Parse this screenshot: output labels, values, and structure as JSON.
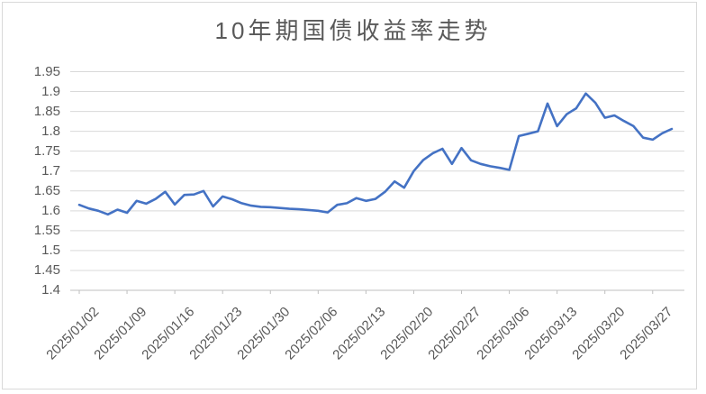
{
  "chart_data": {
    "type": "line",
    "title": "10年期国债收益率走势",
    "legend": "none",
    "grid": true,
    "ylim": [
      1.4,
      1.95
    ],
    "y_step": 0.05,
    "y_tick_labels": [
      "1.95",
      "1.9",
      "1.85",
      "1.8",
      "1.75",
      "1.7",
      "1.65",
      "1.6",
      "1.55",
      "1.5",
      "1.45",
      "1.4"
    ],
    "x_tick_labels": [
      "2025/01/02",
      "2025/01/09",
      "2025/01/16",
      "2025/01/23",
      "2025/01/30",
      "2025/02/06",
      "2025/02/13",
      "2025/02/20",
      "2025/02/27",
      "2025/03/06",
      "2025/03/13",
      "2025/03/20",
      "2025/03/27"
    ],
    "tick_interval": 5,
    "x": [
      "2025/01/02",
      "2025/01/03",
      "2025/01/06",
      "2025/01/07",
      "2025/01/08",
      "2025/01/09",
      "2025/01/10",
      "2025/01/13",
      "2025/01/14",
      "2025/01/15",
      "2025/01/16",
      "2025/01/17",
      "2025/01/20",
      "2025/01/21",
      "2025/01/22",
      "2025/01/23",
      "2025/01/24",
      "2025/01/27",
      "2025/01/28",
      "2025/01/29",
      "2025/01/30",
      "2025/01/31",
      "2025/02/03",
      "2025/02/04",
      "2025/02/05",
      "2025/02/06",
      "2025/02/07",
      "2025/02/10",
      "2025/02/11",
      "2025/02/12",
      "2025/02/13",
      "2025/02/14",
      "2025/02/17",
      "2025/02/18",
      "2025/02/19",
      "2025/02/20",
      "2025/02/21",
      "2025/02/24",
      "2025/02/25",
      "2025/02/26",
      "2025/02/27",
      "2025/02/28",
      "2025/03/03",
      "2025/03/04",
      "2025/03/05",
      "2025/03/06",
      "2025/03/07",
      "2025/03/10",
      "2025/03/11",
      "2025/03/12",
      "2025/03/13",
      "2025/03/14",
      "2025/03/17",
      "2025/03/18",
      "2025/03/19",
      "2025/03/20",
      "2025/03/21",
      "2025/03/24",
      "2025/03/25",
      "2025/03/26",
      "2025/03/27",
      "2025/03/28",
      "2025/03/31"
    ],
    "values": [
      1.615,
      1.606,
      1.6,
      1.591,
      1.603,
      1.595,
      1.625,
      1.618,
      1.63,
      1.648,
      1.616,
      1.64,
      1.641,
      1.65,
      1.611,
      1.636,
      1.629,
      1.619,
      1.613,
      1.61,
      1.609,
      1.607,
      1.605,
      1.604,
      1.602,
      1.6,
      1.596,
      1.615,
      1.619,
      1.632,
      1.625,
      1.63,
      1.648,
      1.674,
      1.658,
      1.7,
      1.728,
      1.745,
      1.756,
      1.718,
      1.758,
      1.727,
      1.718,
      1.712,
      1.708,
      1.703,
      1.788,
      1.794,
      1.8,
      1.87,
      1.813,
      1.843,
      1.858,
      1.895,
      1.872,
      1.834,
      1.84,
      1.826,
      1.813,
      1.784,
      1.779,
      1.795,
      1.806
    ],
    "line_color": "#4472C4",
    "gridline_color": "#d9d9d9",
    "axis_line_color": "#bfbfbf",
    "text_color": "#595959",
    "title_color": "#595959"
  }
}
